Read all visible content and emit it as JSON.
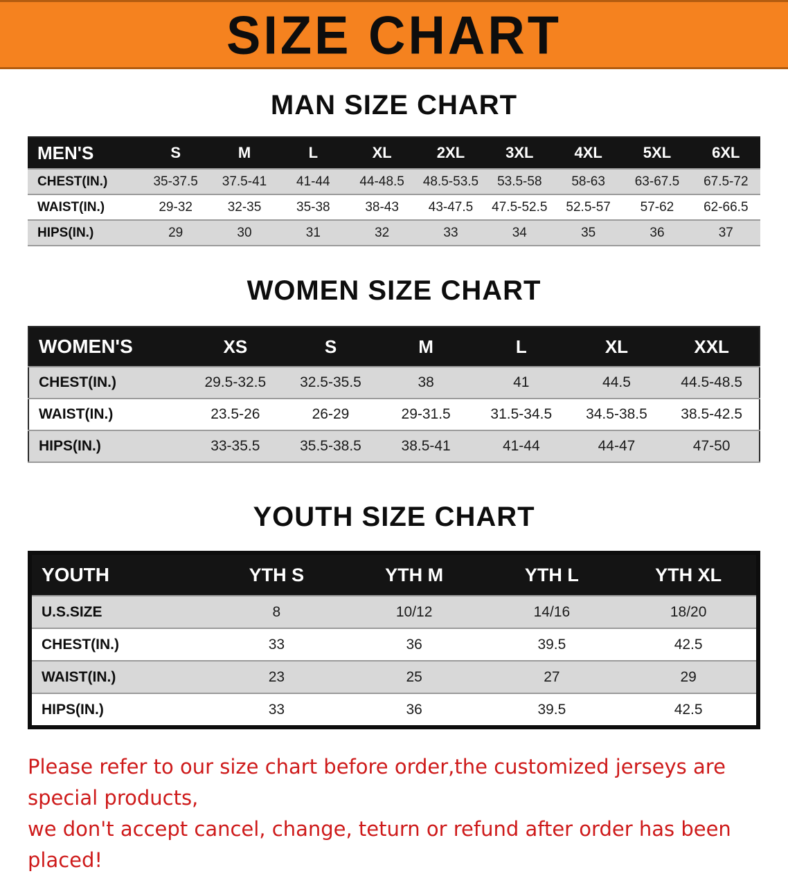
{
  "banner": {
    "title": "SIZE CHART"
  },
  "colors": {
    "banner_orange": "#F5821F",
    "header_black": "#141414",
    "row_gray": "#D8D8D8",
    "disclaimer_red": "#CE1A1A"
  },
  "sections": {
    "men": {
      "title": "MAN SIZE CHART",
      "table": {
        "header_label": "MEN'S",
        "sizes": [
          "S",
          "M",
          "L",
          "XL",
          "2XL",
          "3XL",
          "4XL",
          "5XL",
          "6XL"
        ],
        "rows": [
          {
            "label": "CHEST(IN.)",
            "values": [
              "35-37.5",
              "37.5-41",
              "41-44",
              "44-48.5",
              "48.5-53.5",
              "53.5-58",
              "58-63",
              "63-67.5",
              "67.5-72"
            ]
          },
          {
            "label": "WAIST(IN.)",
            "values": [
              "29-32",
              "32-35",
              "35-38",
              "38-43",
              "43-47.5",
              "47.5-52.5",
              "52.5-57",
              "57-62",
              "62-66.5"
            ]
          },
          {
            "label": "HIPS(IN.)",
            "values": [
              "29",
              "30",
              "31",
              "32",
              "33",
              "34",
              "35",
              "36",
              "37"
            ]
          }
        ]
      }
    },
    "women": {
      "title": "WOMEN SIZE CHART",
      "table": {
        "header_label": "WOMEN'S",
        "sizes": [
          "XS",
          "S",
          "M",
          "L",
          "XL",
          "XXL"
        ],
        "rows": [
          {
            "label": "CHEST(IN.)",
            "values": [
              "29.5-32.5",
              "32.5-35.5",
              "38",
              "41",
              "44.5",
              "44.5-48.5"
            ]
          },
          {
            "label": "WAIST(IN.)",
            "values": [
              "23.5-26",
              "26-29",
              "29-31.5",
              "31.5-34.5",
              "34.5-38.5",
              "38.5-42.5"
            ]
          },
          {
            "label": "HIPS(IN.)",
            "values": [
              "33-35.5",
              "35.5-38.5",
              "38.5-41",
              "41-44",
              "44-47",
              "47-50"
            ]
          }
        ]
      }
    },
    "youth": {
      "title": "YOUTH SIZE CHART",
      "table": {
        "header_label": "YOUTH",
        "sizes": [
          "YTH S",
          "YTH M",
          "YTH L",
          "YTH XL"
        ],
        "rows": [
          {
            "label": "U.S.SIZE",
            "values": [
              "8",
              "10/12",
              "14/16",
              "18/20"
            ]
          },
          {
            "label": "CHEST(IN.)",
            "values": [
              "33",
              "36",
              "39.5",
              "42.5"
            ]
          },
          {
            "label": "WAIST(IN.)",
            "values": [
              "23",
              "25",
              "27",
              "29"
            ]
          },
          {
            "label": "HIPS(IN.)",
            "values": [
              "33",
              "36",
              "39.5",
              "42.5"
            ]
          }
        ]
      }
    }
  },
  "disclaimer": {
    "line1": "Please refer to our size chart before order,the customized jerseys are special products,",
    "line2": "we don't accept cancel, change, teturn or refund after order has been placed!"
  }
}
